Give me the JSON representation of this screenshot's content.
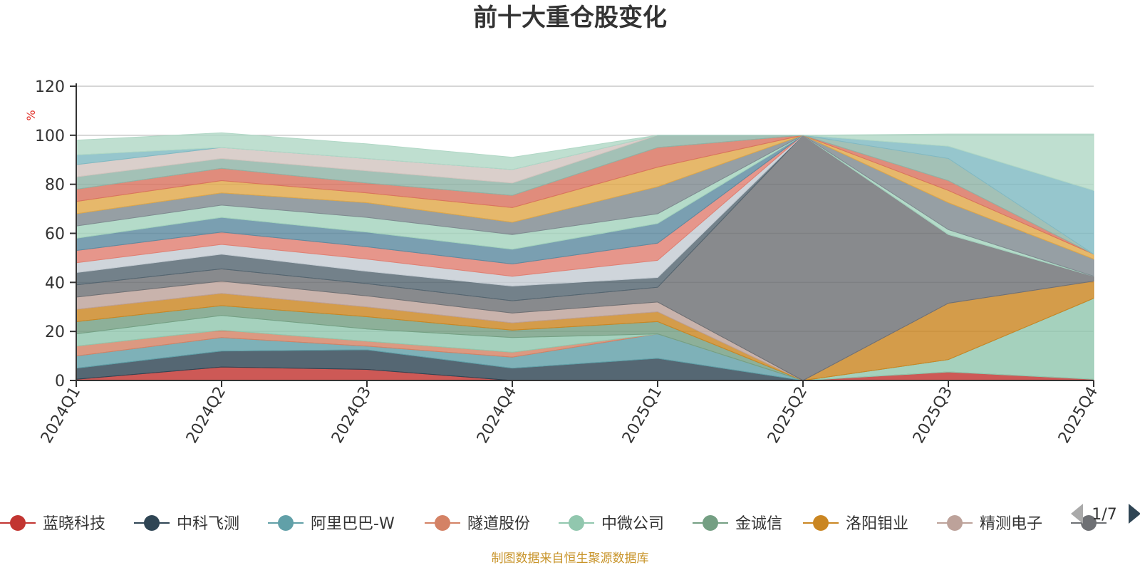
{
  "chart_data": {
    "type": "area",
    "title": "前十大重仓股变化",
    "ylabel": "%",
    "ylim": [
      0,
      120
    ],
    "yticks": [
      0,
      20,
      40,
      60,
      80,
      100,
      120
    ],
    "grid": true,
    "legend_position": "bottom",
    "categories": [
      "2024Q1",
      "2024Q2",
      "2024Q3",
      "2024Q4",
      "2025Q1",
      "2025Q2",
      "2025Q3",
      "2025Q4"
    ],
    "series": [
      {
        "name": "蓝晓科技",
        "color": "#c23531",
        "values": [
          0.5,
          5.5,
          4.5,
          0,
          0,
          0,
          3.5,
          0.5
        ]
      },
      {
        "name": "中科飞测",
        "color": "#2f4554",
        "values": [
          4.5,
          6.5,
          8,
          5,
          9,
          0,
          0,
          0
        ]
      },
      {
        "name": "阿里巴巴-W",
        "color": "#61a0a8",
        "values": [
          5,
          5.5,
          1.5,
          4.5,
          10,
          0,
          0,
          0
        ]
      },
      {
        "name": "隧道股份",
        "color": "#d48265",
        "values": [
          4,
          3,
          2,
          2,
          0,
          0,
          0,
          0
        ]
      },
      {
        "name": "中微公司",
        "color": "#91c7ae",
        "values": [
          5,
          6,
          5,
          6,
          0,
          0,
          5,
          33
        ]
      },
      {
        "name": "金诚信",
        "color": "#749f83",
        "values": [
          5,
          4,
          5,
          3,
          5,
          0,
          0,
          0
        ]
      },
      {
        "name": "洛阳钼业",
        "color": "#ca8622",
        "values": [
          5,
          5,
          4,
          3,
          4,
          0,
          23,
          7
        ]
      },
      {
        "name": "精测电子",
        "color": "#bda29a",
        "values": [
          5,
          5,
          4.5,
          4,
          4,
          0,
          0,
          0
        ]
      },
      {
        "name": "",
        "color": "#6e7074",
        "values": [
          5,
          5,
          5,
          5,
          6,
          100,
          28,
          2
        ]
      },
      {
        "name": "",
        "color": "#546570",
        "values": [
          5,
          6,
          5,
          6,
          4,
          0,
          0,
          0
        ]
      },
      {
        "name": "",
        "color": "#c4ccd3",
        "values": [
          4,
          4,
          5,
          4,
          7,
          0,
          0,
          0
        ]
      },
      {
        "name": "",
        "color": "#e07f72",
        "values": [
          5,
          5,
          5,
          5,
          7,
          0,
          0,
          0
        ]
      },
      {
        "name": "",
        "color": "#5d8aa0",
        "values": [
          5,
          6,
          6,
          6,
          8,
          0,
          0,
          0
        ]
      },
      {
        "name": "",
        "color": "#a3d3bd",
        "values": [
          5,
          5,
          6,
          6,
          4,
          0,
          2,
          0
        ]
      },
      {
        "name": "",
        "color": "#7f8a90",
        "values": [
          5,
          5,
          6,
          5,
          11,
          0,
          11,
          7
        ]
      },
      {
        "name": "",
        "color": "#e0a84a",
        "values": [
          5,
          5,
          4,
          6,
          8,
          0,
          5,
          2
        ]
      },
      {
        "name": "",
        "color": "#d9735f",
        "values": [
          5,
          5,
          4,
          5,
          8,
          0,
          4,
          0
        ]
      },
      {
        "name": "",
        "color": "#8fb3a6",
        "values": [
          5,
          4,
          5,
          5,
          5,
          0,
          9,
          0
        ]
      },
      {
        "name": "",
        "color": "#d2c5bf",
        "values": [
          5,
          4.5,
          5,
          5.5,
          0,
          0,
          0,
          0
        ]
      },
      {
        "name": "",
        "color": "#7fb9c2",
        "values": [
          4,
          0,
          0,
          0,
          0,
          0,
          5,
          26
        ]
      },
      {
        "name": "",
        "color": "#b1d8c6",
        "values": [
          6,
          6,
          6,
          5,
          0,
          0,
          5,
          23
        ]
      }
    ]
  },
  "legend": {
    "visible_items": [
      {
        "name": "蓝晓科技",
        "color": "#c23531"
      },
      {
        "name": "中科飞测",
        "color": "#2f4554"
      },
      {
        "name": "阿里巴巴-W",
        "color": "#61a0a8"
      },
      {
        "name": "隧道股份",
        "color": "#d48265"
      },
      {
        "name": "中微公司",
        "color": "#91c7ae"
      },
      {
        "name": "金诚信",
        "color": "#749f83"
      },
      {
        "name": "洛阳钼业",
        "color": "#ca8622"
      },
      {
        "name": "精测电子",
        "color": "#bda29a"
      },
      {
        "name": "",
        "color": "#6e7074"
      }
    ],
    "page_indicator": "1/7"
  },
  "footer": {
    "source": "制图数据来自恒生聚源数据库"
  }
}
